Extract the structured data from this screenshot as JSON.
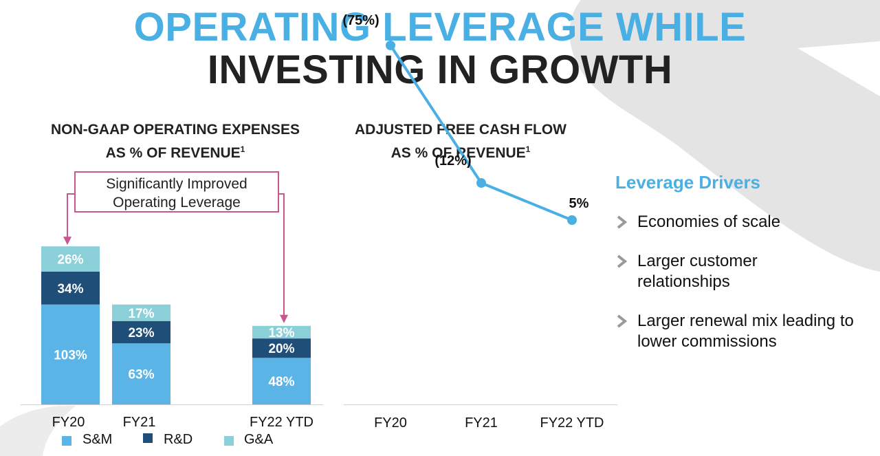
{
  "title": {
    "line1": "OPERATING LEVERAGE WHILE",
    "line2": "INVESTING IN GROWTH"
  },
  "colors": {
    "title_accent": "#4ab0e4",
    "sm": "#5ab4e5",
    "rd": "#1f4e79",
    "ga": "#8bd0d9",
    "fcf_line": "#4ab0e4",
    "callout": "#c9568f",
    "decor": "#e4e4e4"
  },
  "callout": {
    "line1": "Significantly Improved",
    "line2": "Operating Leverage"
  },
  "drivers": {
    "title": "Leverage Drivers",
    "icon": "chevron-right-icon",
    "items": [
      "Economies of scale",
      "Larger customer relationships",
      "Larger renewal mix leading to lower commissions"
    ]
  },
  "chart_data": [
    {
      "type": "bar",
      "stacked": true,
      "title_line1": "NON-GAAP OPERATING EXPENSES",
      "title_line2": "AS % OF REVENUE",
      "title_sup": "1",
      "categories": [
        "FY20",
        "FY21",
        "FY22 YTD"
      ],
      "series": [
        {
          "name": "S&M",
          "values": [
            103,
            63,
            48
          ],
          "labels": [
            "103%",
            "63%",
            "48%"
          ]
        },
        {
          "name": "R&D",
          "values": [
            34,
            23,
            20
          ],
          "labels": [
            "34%",
            "23%",
            "20%"
          ]
        },
        {
          "name": "G&A",
          "values": [
            26,
            17,
            13
          ],
          "labels": [
            "26%",
            "17%",
            "13%"
          ]
        }
      ],
      "legend": "bottom"
    },
    {
      "type": "line",
      "title_line1": "ADJUSTED FREE CASH FLOW",
      "title_line2": "AS % OF REVENUE",
      "title_sup": "1",
      "categories": [
        "FY20",
        "FY21",
        "FY22 YTD"
      ],
      "series": [
        {
          "values": [
            -75,
            -12,
            5
          ],
          "labels": [
            "(75%)",
            "(12%)",
            "5%"
          ]
        }
      ]
    }
  ]
}
